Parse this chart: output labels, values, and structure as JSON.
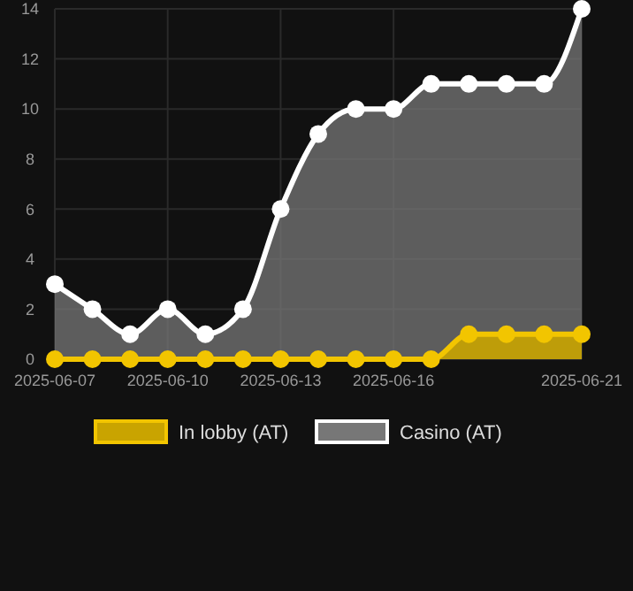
{
  "chart_data": {
    "type": "area",
    "x": [
      "2025-06-07",
      "2025-06-08",
      "2025-06-09",
      "2025-06-10",
      "2025-06-11",
      "2025-06-12",
      "2025-06-13",
      "2025-06-14",
      "2025-06-15",
      "2025-06-16",
      "2025-06-17",
      "2025-06-18",
      "2025-06-19",
      "2025-06-20",
      "2025-06-21"
    ],
    "series": [
      {
        "name": "In lobby (AT)",
        "color": "#f2c500",
        "values": [
          0,
          0,
          0,
          0,
          0,
          0,
          0,
          0,
          0,
          0,
          0,
          1,
          1,
          1,
          1
        ]
      },
      {
        "name": "Casino (AT)",
        "color": "#ffffff",
        "values": [
          3,
          2,
          1,
          2,
          1,
          2,
          6,
          9,
          10,
          10,
          11,
          11,
          11,
          11,
          14
        ]
      }
    ],
    "xlim": [
      "2025-06-07",
      "2025-06-21"
    ],
    "xticks": [
      {
        "value": "2025-06-07",
        "label": "2025-06-07"
      },
      {
        "value": "2025-06-10",
        "label": "2025-06-10"
      },
      {
        "value": "2025-06-13",
        "label": "2025-06-13"
      },
      {
        "value": "2025-06-16",
        "label": "2025-06-16"
      },
      {
        "value": "2025-06-21",
        "label": "2025-06-21"
      }
    ],
    "ylim": [
      0,
      14
    ],
    "yticks": [
      0,
      2,
      4,
      6,
      8,
      10,
      12,
      14
    ],
    "grid": true,
    "legend": "bottom",
    "marker": "circle",
    "line_style": "solid"
  }
}
